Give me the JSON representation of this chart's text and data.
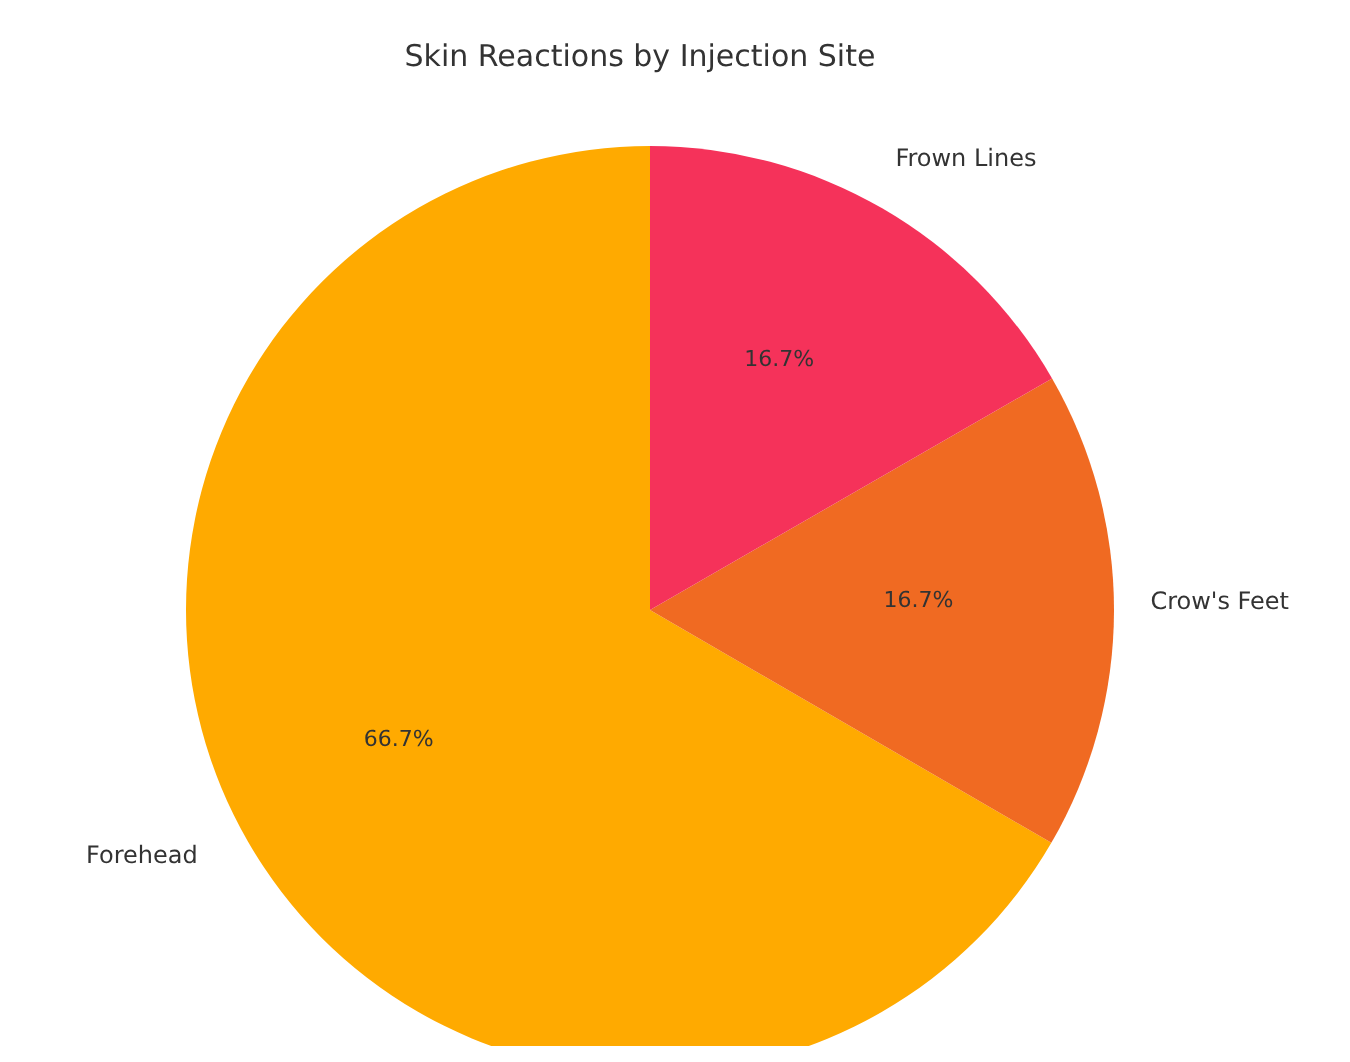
{
  "chart_data": {
    "type": "pie",
    "title": "Skin Reactions by Injection Site",
    "categories": [
      "Forehead",
      "Crow's Feet",
      "Frown Lines"
    ],
    "values": [
      66.7,
      16.7,
      16.7
    ],
    "colors": [
      "#ffaa00",
      "#f06a22",
      "#f5325a"
    ],
    "value_labels": [
      "66.7%",
      "16.7%",
      "16.7%"
    ],
    "legend": false
  }
}
